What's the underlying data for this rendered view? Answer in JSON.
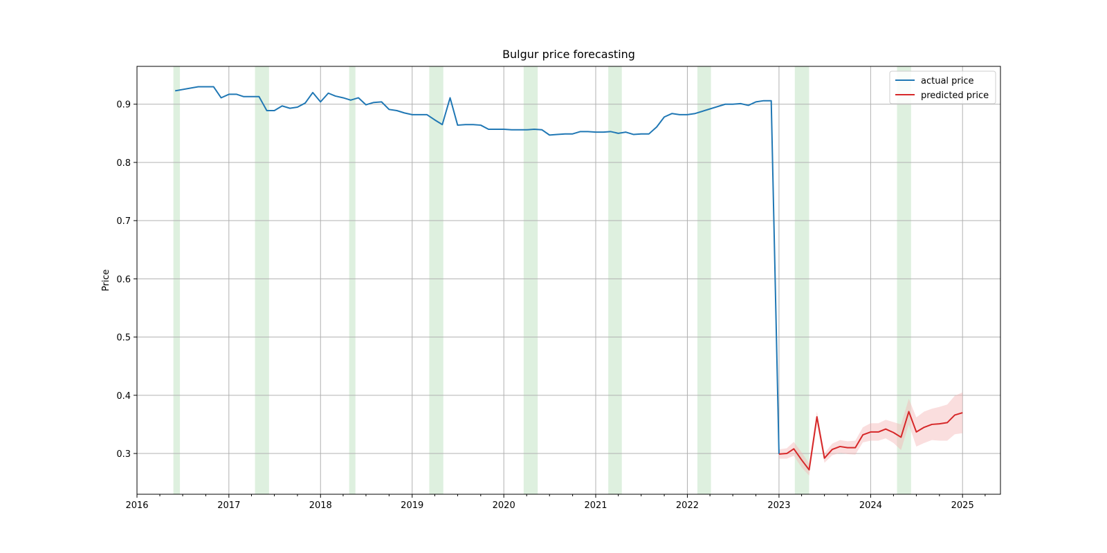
{
  "chart_data": {
    "type": "line",
    "title": "Bulgur price forecasting",
    "xlabel": "",
    "ylabel": "Price",
    "xlim": [
      "2016-01-01",
      "2025-06-01"
    ],
    "ylim": [
      0.23,
      0.965
    ],
    "x_ticks": [
      "2016",
      "2017",
      "2018",
      "2019",
      "2020",
      "2021",
      "2022",
      "2023",
      "2024",
      "2025"
    ],
    "y_ticks": [
      0.3,
      0.4,
      0.5,
      0.6,
      0.7,
      0.8,
      0.9
    ],
    "grid": true,
    "legend_position": "upper right",
    "colors": {
      "actual": "#1f77b4",
      "predicted": "#d62728",
      "band": "#f4b6b6",
      "shade": "#c8e6c9"
    },
    "shaded_periods": [
      [
        "2016-05-25",
        "2016-06-20"
      ],
      [
        "2017-04-15",
        "2017-06-10"
      ],
      [
        "2018-04-25",
        "2018-05-20"
      ],
      [
        "2019-03-10",
        "2019-05-05"
      ],
      [
        "2020-03-20",
        "2020-05-15"
      ],
      [
        "2021-02-20",
        "2021-04-15"
      ],
      [
        "2022-02-10",
        "2022-04-05"
      ],
      [
        "2023-03-05",
        "2023-05-01"
      ],
      [
        "2024-04-15",
        "2024-06-10"
      ]
    ],
    "series": [
      {
        "name": "actual price",
        "x": [
          "2016-06-01",
          "2016-09-01",
          "2016-11-01",
          "2016-12-01",
          "2017-01-01",
          "2017-02-01",
          "2017-03-01",
          "2017-04-01",
          "2017-05-01",
          "2017-06-01",
          "2017-07-01",
          "2017-08-01",
          "2017-09-01",
          "2017-10-01",
          "2017-11-01",
          "2017-12-01",
          "2018-01-01",
          "2018-02-01",
          "2018-03-01",
          "2018-04-01",
          "2018-05-01",
          "2018-06-01",
          "2018-07-01",
          "2018-08-01",
          "2018-09-01",
          "2018-10-01",
          "2018-11-01",
          "2018-12-01",
          "2019-01-01",
          "2019-02-01",
          "2019-03-01",
          "2019-04-01",
          "2019-05-01",
          "2019-06-01",
          "2019-07-01",
          "2019-08-01",
          "2019-09-01",
          "2019-10-01",
          "2019-11-01",
          "2019-12-01",
          "2020-01-01",
          "2020-02-01",
          "2020-03-01",
          "2020-04-01",
          "2020-05-01",
          "2020-06-01",
          "2020-07-01",
          "2020-08-01",
          "2020-09-01",
          "2020-10-01",
          "2020-11-01",
          "2020-12-01",
          "2021-01-01",
          "2021-02-01",
          "2021-03-01",
          "2021-04-01",
          "2021-05-01",
          "2021-06-01",
          "2021-07-01",
          "2021-08-01",
          "2021-09-01",
          "2021-10-01",
          "2021-11-01",
          "2021-12-01",
          "2022-01-01",
          "2022-02-01",
          "2022-06-01",
          "2022-07-01",
          "2022-08-01",
          "2022-09-01",
          "2022-10-01",
          "2022-11-01",
          "2022-12-01",
          "2023-01-01"
        ],
        "values": [
          0.923,
          0.93,
          0.93,
          0.911,
          0.917,
          0.917,
          0.913,
          0.913,
          0.913,
          0.889,
          0.889,
          0.897,
          0.893,
          0.895,
          0.902,
          0.92,
          0.904,
          0.919,
          0.914,
          0.911,
          0.907,
          0.911,
          0.899,
          0.903,
          0.904,
          0.891,
          0.889,
          0.885,
          0.882,
          0.882,
          0.882,
          0.873,
          0.865,
          0.911,
          0.864,
          0.865,
          0.865,
          0.864,
          0.857,
          0.857,
          0.857,
          0.856,
          0.856,
          0.856,
          0.857,
          0.856,
          0.847,
          0.848,
          0.849,
          0.849,
          0.853,
          0.853,
          0.852,
          0.852,
          0.853,
          0.85,
          0.852,
          0.848,
          0.849,
          0.849,
          0.861,
          0.878,
          0.884,
          0.882,
          0.882,
          0.884,
          0.9,
          0.9,
          0.901,
          0.898,
          0.904,
          0.906,
          0.906,
          0.299
        ]
      },
      {
        "name": "predicted price",
        "x": [
          "2023-01-01",
          "2023-02-01",
          "2023-03-01",
          "2023-04-01",
          "2023-05-01",
          "2023-06-01",
          "2023-07-01",
          "2023-08-01",
          "2023-09-01",
          "2023-10-01",
          "2023-11-01",
          "2023-12-01",
          "2024-01-01",
          "2024-02-01",
          "2024-03-01",
          "2024-04-01",
          "2024-05-01",
          "2024-06-01",
          "2024-07-01",
          "2024-08-01",
          "2024-09-01",
          "2024-10-01",
          "2024-11-01",
          "2024-12-01",
          "2025-01-01"
        ],
        "values": [
          0.299,
          0.3,
          0.308,
          0.289,
          0.272,
          0.363,
          0.292,
          0.307,
          0.312,
          0.31,
          0.31,
          0.332,
          0.337,
          0.337,
          0.342,
          0.336,
          0.328,
          0.372,
          0.337,
          0.345,
          0.35,
          0.351,
          0.353,
          0.366,
          0.37
        ],
        "lower": [
          0.291,
          0.291,
          0.296,
          0.276,
          0.262,
          0.35,
          0.284,
          0.297,
          0.301,
          0.299,
          0.298,
          0.319,
          0.322,
          0.322,
          0.326,
          0.318,
          0.306,
          0.35,
          0.312,
          0.318,
          0.323,
          0.322,
          0.322,
          0.333,
          0.335
        ],
        "upper": [
          0.307,
          0.309,
          0.32,
          0.302,
          0.283,
          0.372,
          0.3,
          0.317,
          0.323,
          0.321,
          0.322,
          0.345,
          0.352,
          0.352,
          0.358,
          0.354,
          0.35,
          0.394,
          0.362,
          0.372,
          0.377,
          0.38,
          0.384,
          0.399,
          0.405
        ]
      }
    ]
  }
}
